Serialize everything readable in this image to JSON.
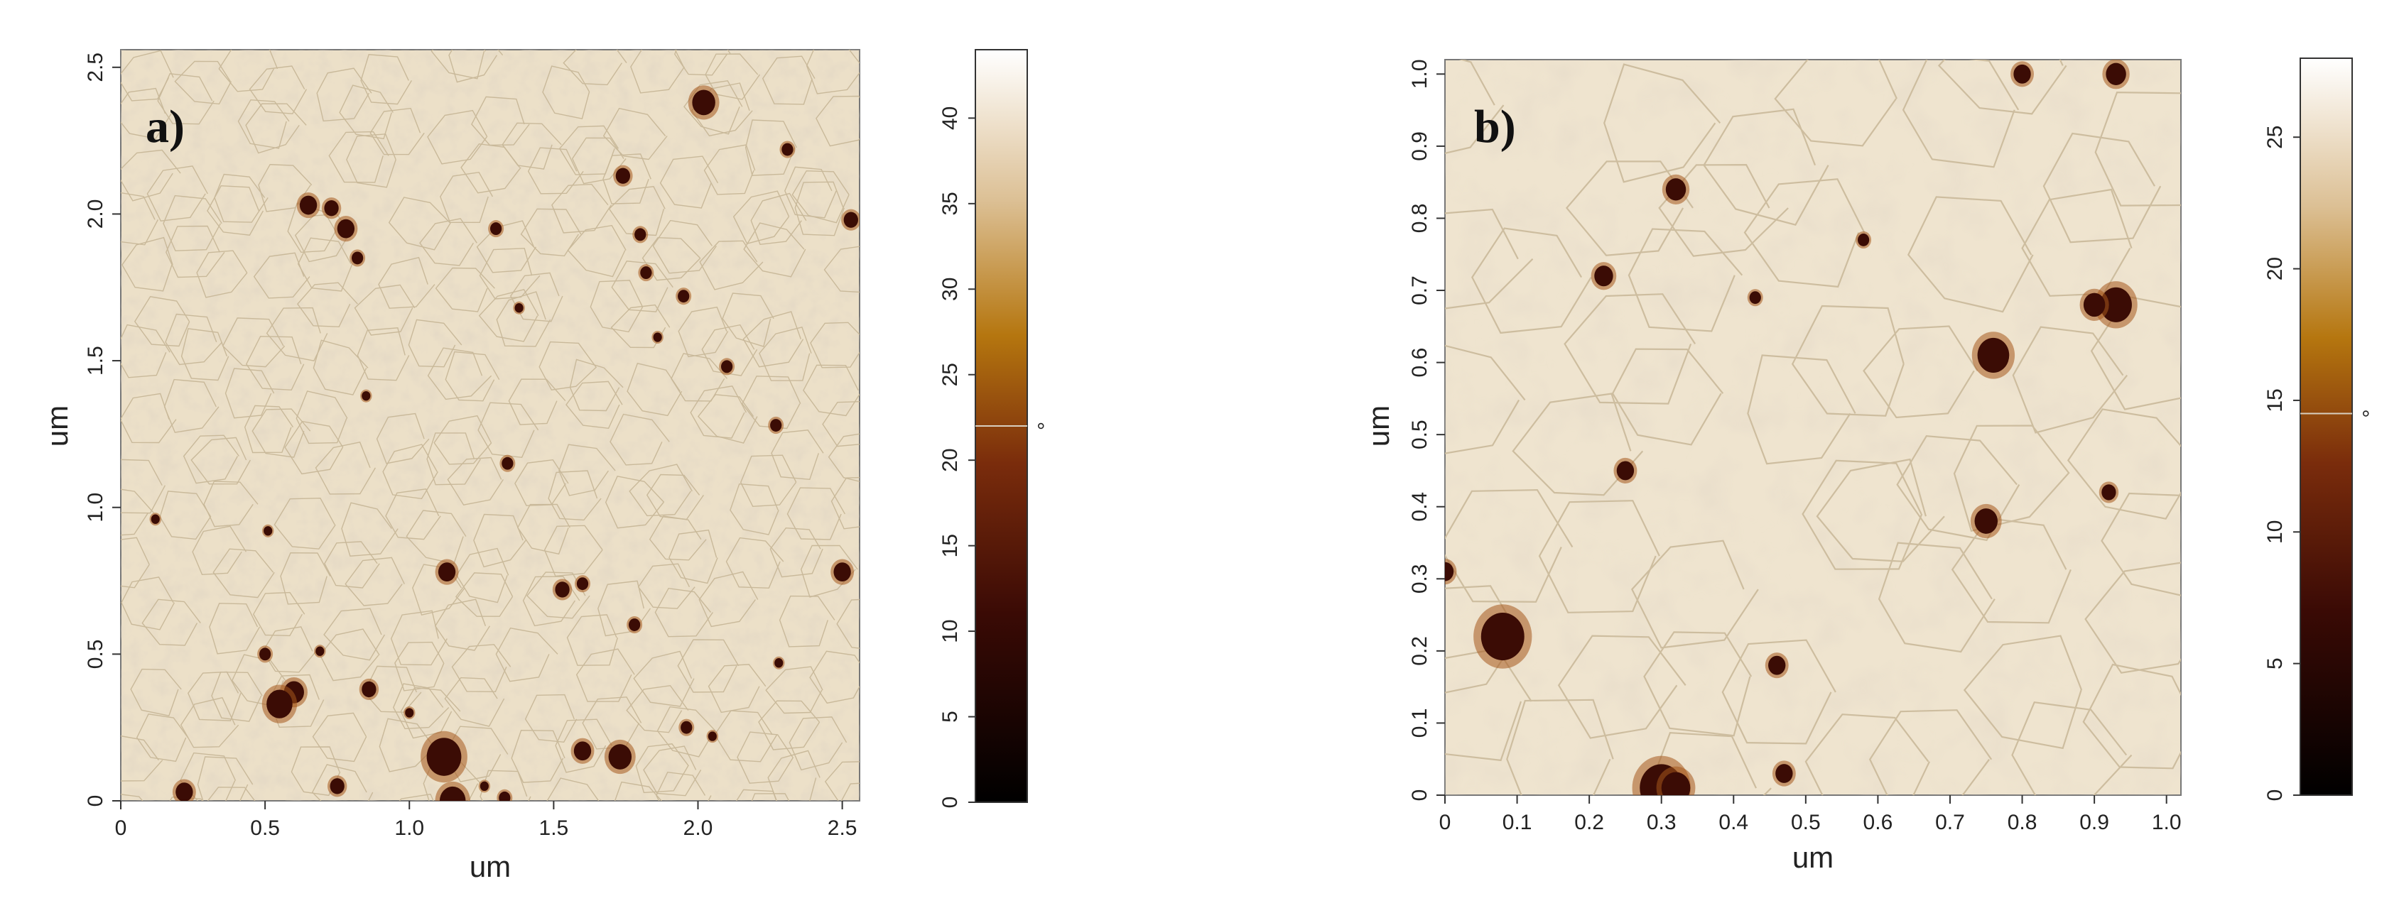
{
  "figure": {
    "panels": [
      {
        "label": "a)",
        "xlabel": "um",
        "ylabel": "um",
        "x_ticks": [
          "0",
          "0.5",
          "1.0",
          "1.5",
          "2.0",
          "2.5"
        ],
        "x_tick_values": [
          0,
          0.5,
          1.0,
          1.5,
          2.0,
          2.5
        ],
        "y_ticks": [
          "0",
          "0.5",
          "1.0",
          "1.5",
          "2.0",
          "2.5"
        ],
        "y_tick_values": [
          0,
          0.5,
          1.0,
          1.5,
          2.0,
          2.5
        ],
        "scan_range": [
          0,
          2.56
        ],
        "colorbar": {
          "ticks": [
            "0",
            "5",
            "10",
            "15",
            "20",
            "25",
            "30",
            "35",
            "40"
          ],
          "tick_values": [
            0,
            5,
            10,
            15,
            20,
            25,
            30,
            35,
            40
          ],
          "range": [
            0,
            44
          ],
          "marker_value": 22,
          "unit": "°"
        },
        "pits": [
          [
            0.22,
            0.03,
            0.03
          ],
          [
            0.75,
            0.05,
            0.025
          ],
          [
            1.12,
            0.15,
            0.06
          ],
          [
            1.15,
            0.0,
            0.045
          ],
          [
            1.6,
            0.17,
            0.03
          ],
          [
            1.73,
            0.15,
            0.04
          ],
          [
            0.6,
            0.37,
            0.035
          ],
          [
            0.55,
            0.33,
            0.045
          ],
          [
            0.86,
            0.38,
            0.025
          ],
          [
            0.5,
            0.5,
            0.02
          ],
          [
            1.13,
            0.78,
            0.03
          ],
          [
            1.53,
            0.72,
            0.025
          ],
          [
            1.6,
            0.74,
            0.02
          ],
          [
            2.5,
            0.78,
            0.03
          ],
          [
            0.12,
            0.96,
            0.015
          ],
          [
            0.65,
            2.03,
            0.03
          ],
          [
            0.73,
            2.02,
            0.025
          ],
          [
            0.78,
            1.95,
            0.03
          ],
          [
            0.82,
            1.85,
            0.02
          ],
          [
            1.3,
            1.95,
            0.02
          ],
          [
            1.74,
            2.13,
            0.025
          ],
          [
            1.8,
            1.93,
            0.02
          ],
          [
            2.02,
            2.38,
            0.04
          ],
          [
            2.31,
            2.22,
            0.02
          ],
          [
            2.53,
            1.98,
            0.025
          ],
          [
            1.82,
            1.8,
            0.02
          ],
          [
            1.95,
            1.72,
            0.02
          ],
          [
            1.38,
            1.68,
            0.015
          ],
          [
            2.1,
            1.48,
            0.02
          ],
          [
            2.27,
            1.28,
            0.02
          ],
          [
            1.34,
            1.15,
            0.02
          ],
          [
            0.51,
            0.92,
            0.015
          ],
          [
            1.0,
            0.3,
            0.015
          ],
          [
            1.96,
            0.25,
            0.02
          ],
          [
            2.05,
            0.22,
            0.015
          ],
          [
            1.33,
            0.01,
            0.02
          ],
          [
            1.26,
            0.05,
            0.015
          ],
          [
            0.85,
            1.38,
            0.015
          ],
          [
            1.86,
            1.58,
            0.015
          ],
          [
            0.69,
            0.51,
            0.015
          ],
          [
            1.78,
            0.6,
            0.02
          ],
          [
            2.28,
            0.47,
            0.015
          ]
        ]
      },
      {
        "label": "b)",
        "xlabel": "um",
        "ylabel": "um",
        "x_ticks": [
          "0",
          "0.1",
          "0.2",
          "0.3",
          "0.4",
          "0.5",
          "0.6",
          "0.7",
          "0.8",
          "0.9",
          "1.0"
        ],
        "x_tick_values": [
          0,
          0.1,
          0.2,
          0.3,
          0.4,
          0.5,
          0.6,
          0.7,
          0.8,
          0.9,
          1.0
        ],
        "y_ticks": [
          "0",
          "0.1",
          "0.2",
          "0.3",
          "0.4",
          "0.5",
          "0.6",
          "0.7",
          "0.8",
          "0.9",
          "1.0"
        ],
        "y_tick_values": [
          0,
          0.1,
          0.2,
          0.3,
          0.4,
          0.5,
          0.6,
          0.7,
          0.8,
          0.9,
          1.0
        ],
        "scan_range": [
          0,
          1.02
        ],
        "colorbar": {
          "ticks": [
            "0",
            "5",
            "10",
            "15",
            "20",
            "25"
          ],
          "tick_values": [
            0,
            5,
            10,
            15,
            20,
            25
          ],
          "range": [
            0,
            28
          ],
          "marker_value": 14.5,
          "unit": "°"
        },
        "pits": [
          [
            0.08,
            0.22,
            0.03
          ],
          [
            0.3,
            0.01,
            0.03
          ],
          [
            0.32,
            0.01,
            0.02
          ],
          [
            0.47,
            0.03,
            0.012
          ],
          [
            0.46,
            0.18,
            0.012
          ],
          [
            0.76,
            0.61,
            0.022
          ],
          [
            0.75,
            0.38,
            0.016
          ],
          [
            0.93,
            0.68,
            0.022
          ],
          [
            0.9,
            0.68,
            0.015
          ],
          [
            0.22,
            0.72,
            0.013
          ],
          [
            0.32,
            0.84,
            0.014
          ],
          [
            0.25,
            0.45,
            0.012
          ],
          [
            0.92,
            0.42,
            0.01
          ],
          [
            0.0,
            0.31,
            0.012
          ],
          [
            0.8,
            1.0,
            0.012
          ],
          [
            0.93,
            1.0,
            0.014
          ],
          [
            0.58,
            0.77,
            0.008
          ],
          [
            0.43,
            0.69,
            0.008
          ]
        ]
      }
    ]
  }
}
